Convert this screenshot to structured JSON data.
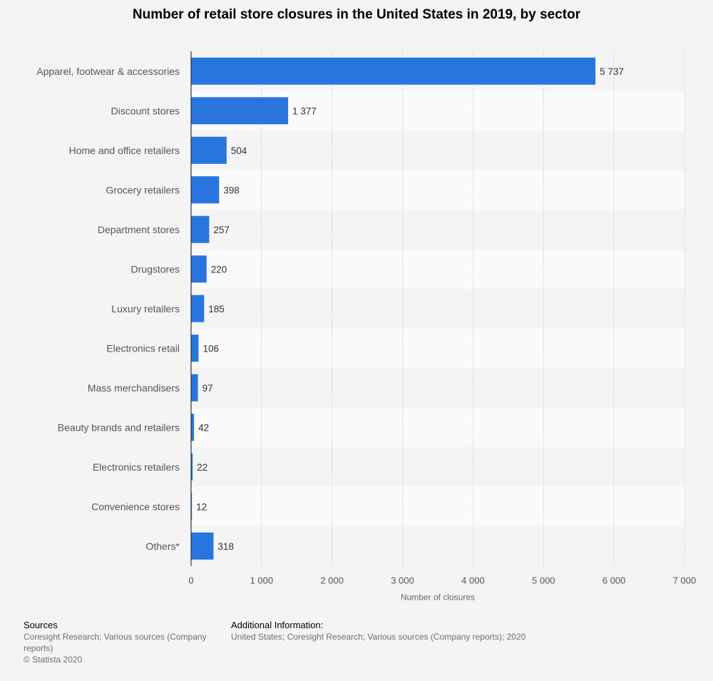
{
  "chart_data": {
    "type": "bar",
    "orientation": "horizontal",
    "title": "Number of retail store closures in the United States in 2019, by sector",
    "xlabel": "Number of closures",
    "ylabel": "",
    "categories": [
      "Apparel, footwear & accessories",
      "Discount stores",
      "Home and office retailers",
      "Grocery retailers",
      "Department stores",
      "Drugstores",
      "Luxury retailers",
      "Electronics retail",
      "Mass merchandisers",
      "Beauty brands and retailers",
      "Electronics retailers",
      "Convenience stores",
      "Others*"
    ],
    "values": [
      5737,
      1377,
      504,
      398,
      257,
      220,
      185,
      106,
      97,
      42,
      22,
      12,
      318
    ],
    "value_labels": [
      "5 737",
      "1 377",
      "504",
      "398",
      "257",
      "220",
      "185",
      "106",
      "97",
      "42",
      "22",
      "12",
      "318"
    ],
    "xlim": [
      0,
      7000
    ],
    "x_ticks": [
      0,
      1000,
      2000,
      3000,
      4000,
      5000,
      6000,
      7000
    ],
    "x_tick_labels": [
      "0",
      "1 000",
      "2 000",
      "3 000",
      "4 000",
      "5 000",
      "6 000",
      "7 000"
    ],
    "grid": true,
    "bar_color": "#2876dd"
  },
  "footer": {
    "sources_heading": "Sources",
    "sources_text": "Coresight Research; Various sources (Company reports)",
    "copyright": "© Statista 2020",
    "additional_heading": "Additional Information:",
    "additional_text": "United States; Coresight Research; Various sources (Company reports); 2020"
  }
}
